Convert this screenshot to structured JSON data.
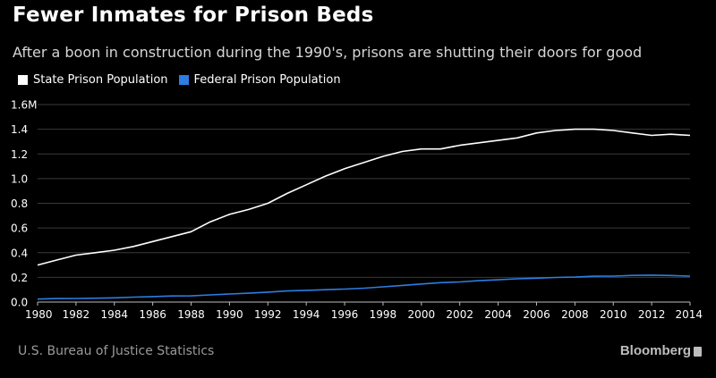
{
  "header": {
    "title": "Fewer Inmates for Prison Beds",
    "subtitle": "After a boon in construction during the 1990's, prisons are shutting their doors for good"
  },
  "footer": {
    "source": "U.S. Bureau of Justice Statistics",
    "brand": "Bloomberg"
  },
  "colors": {
    "background": "#000000",
    "state": "#ffffff",
    "federal": "#2d7de3",
    "grid": "#3a3a3a"
  },
  "chart_data": {
    "type": "line",
    "x": [
      1980,
      1981,
      1982,
      1983,
      1984,
      1985,
      1986,
      1987,
      1988,
      1989,
      1990,
      1991,
      1992,
      1993,
      1994,
      1995,
      1996,
      1997,
      1998,
      1999,
      2000,
      2001,
      2002,
      2003,
      2004,
      2005,
      2006,
      2007,
      2008,
      2009,
      2010,
      2011,
      2012,
      2013,
      2014
    ],
    "series": [
      {
        "name": "State Prison Population",
        "color": "#ffffff",
        "values": [
          0.3,
          0.34,
          0.38,
          0.4,
          0.42,
          0.45,
          0.49,
          0.53,
          0.57,
          0.65,
          0.71,
          0.75,
          0.8,
          0.88,
          0.95,
          1.02,
          1.08,
          1.13,
          1.18,
          1.22,
          1.24,
          1.24,
          1.27,
          1.29,
          1.31,
          1.33,
          1.37,
          1.39,
          1.4,
          1.4,
          1.39,
          1.37,
          1.35,
          1.36,
          1.35
        ]
      },
      {
        "name": "Federal Prison Population",
        "color": "#2d7de3",
        "values": [
          0.024,
          0.028,
          0.029,
          0.031,
          0.034,
          0.04,
          0.044,
          0.049,
          0.05,
          0.058,
          0.065,
          0.072,
          0.08,
          0.09,
          0.095,
          0.1,
          0.105,
          0.112,
          0.123,
          0.135,
          0.146,
          0.157,
          0.163,
          0.173,
          0.18,
          0.188,
          0.193,
          0.199,
          0.202,
          0.209,
          0.21,
          0.216,
          0.218,
          0.215,
          0.21
        ]
      }
    ],
    "x_ticks": [
      "1980",
      "1982",
      "1984",
      "1986",
      "1988",
      "1990",
      "1992",
      "1994",
      "1996",
      "1998",
      "2000",
      "2002",
      "2004",
      "2006",
      "2008",
      "2010",
      "2012",
      "2014"
    ],
    "y_ticks": [
      "0.0",
      "0.2",
      "0.4",
      "0.6",
      "0.8",
      "1.0",
      "1.2",
      "1.4",
      "1.6M"
    ],
    "ylim": [
      0,
      1.6
    ],
    "xlim": [
      1980,
      2014
    ],
    "grid": "horizontal",
    "legend_position": "top-left"
  }
}
